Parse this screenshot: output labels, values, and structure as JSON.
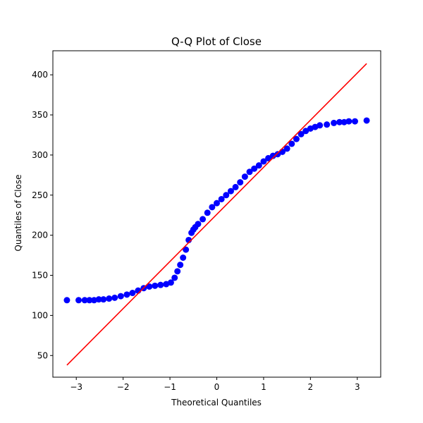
{
  "chart_data": {
    "type": "scatter",
    "title": "Q-Q Plot of Close",
    "xlabel": "Theoretical Quantiles",
    "ylabel": "Quantiles of Close",
    "xlim": [
      -3.5,
      3.5
    ],
    "ylim": [
      23,
      430
    ],
    "x_ticks": [
      -3,
      -2,
      -1,
      0,
      1,
      2,
      3
    ],
    "x_tick_labels": [
      "−3",
      "−2",
      "−1",
      "0",
      "1",
      "2",
      "3"
    ],
    "y_ticks": [
      50,
      100,
      150,
      200,
      250,
      300,
      350,
      400
    ],
    "y_tick_labels": [
      "50",
      "100",
      "150",
      "200",
      "250",
      "300",
      "350",
      "400"
    ],
    "grid": false,
    "colors": {
      "points": "#0000ff",
      "line": "#ff0000",
      "axes": "#000000"
    },
    "series": [
      {
        "kind": "points",
        "x": [
          -3.2,
          -2.95,
          -2.82,
          -2.72,
          -2.62,
          -2.52,
          -2.42,
          -2.3,
          -2.18,
          -2.05,
          -1.92,
          -1.8,
          -1.68,
          -1.56,
          -1.44,
          -1.32,
          -1.2,
          -1.08,
          -0.98,
          -0.9,
          -0.84,
          -0.78,
          -0.72,
          -0.66,
          -0.6,
          -0.54,
          -0.5,
          -0.46,
          -0.4,
          -0.3,
          -0.2,
          -0.1,
          0.0,
          0.1,
          0.2,
          0.3,
          0.4,
          0.5,
          0.6,
          0.7,
          0.8,
          0.9,
          1.0,
          1.1,
          1.2,
          1.3,
          1.4,
          1.5,
          1.6,
          1.7,
          1.8,
          1.9,
          2.0,
          2.1,
          2.2,
          2.35,
          2.5,
          2.62,
          2.72,
          2.82,
          2.95,
          3.2
        ],
        "y": [
          119,
          119,
          119,
          119,
          119,
          120,
          120,
          121,
          122,
          124,
          126,
          128,
          131,
          134,
          136,
          137,
          138,
          139,
          141,
          147,
          155,
          163,
          172,
          182,
          194,
          203,
          207,
          210,
          214,
          220,
          228,
          235,
          240,
          245,
          250,
          255,
          260,
          266,
          273,
          279,
          283,
          287,
          292,
          296,
          299,
          301,
          304,
          308,
          314,
          320,
          326,
          330,
          333,
          335,
          337,
          338,
          340,
          341,
          341,
          342,
          342,
          343
        ]
      },
      {
        "kind": "line",
        "x": [
          -3.2,
          3.2
        ],
        "y": [
          38,
          414
        ]
      }
    ]
  }
}
